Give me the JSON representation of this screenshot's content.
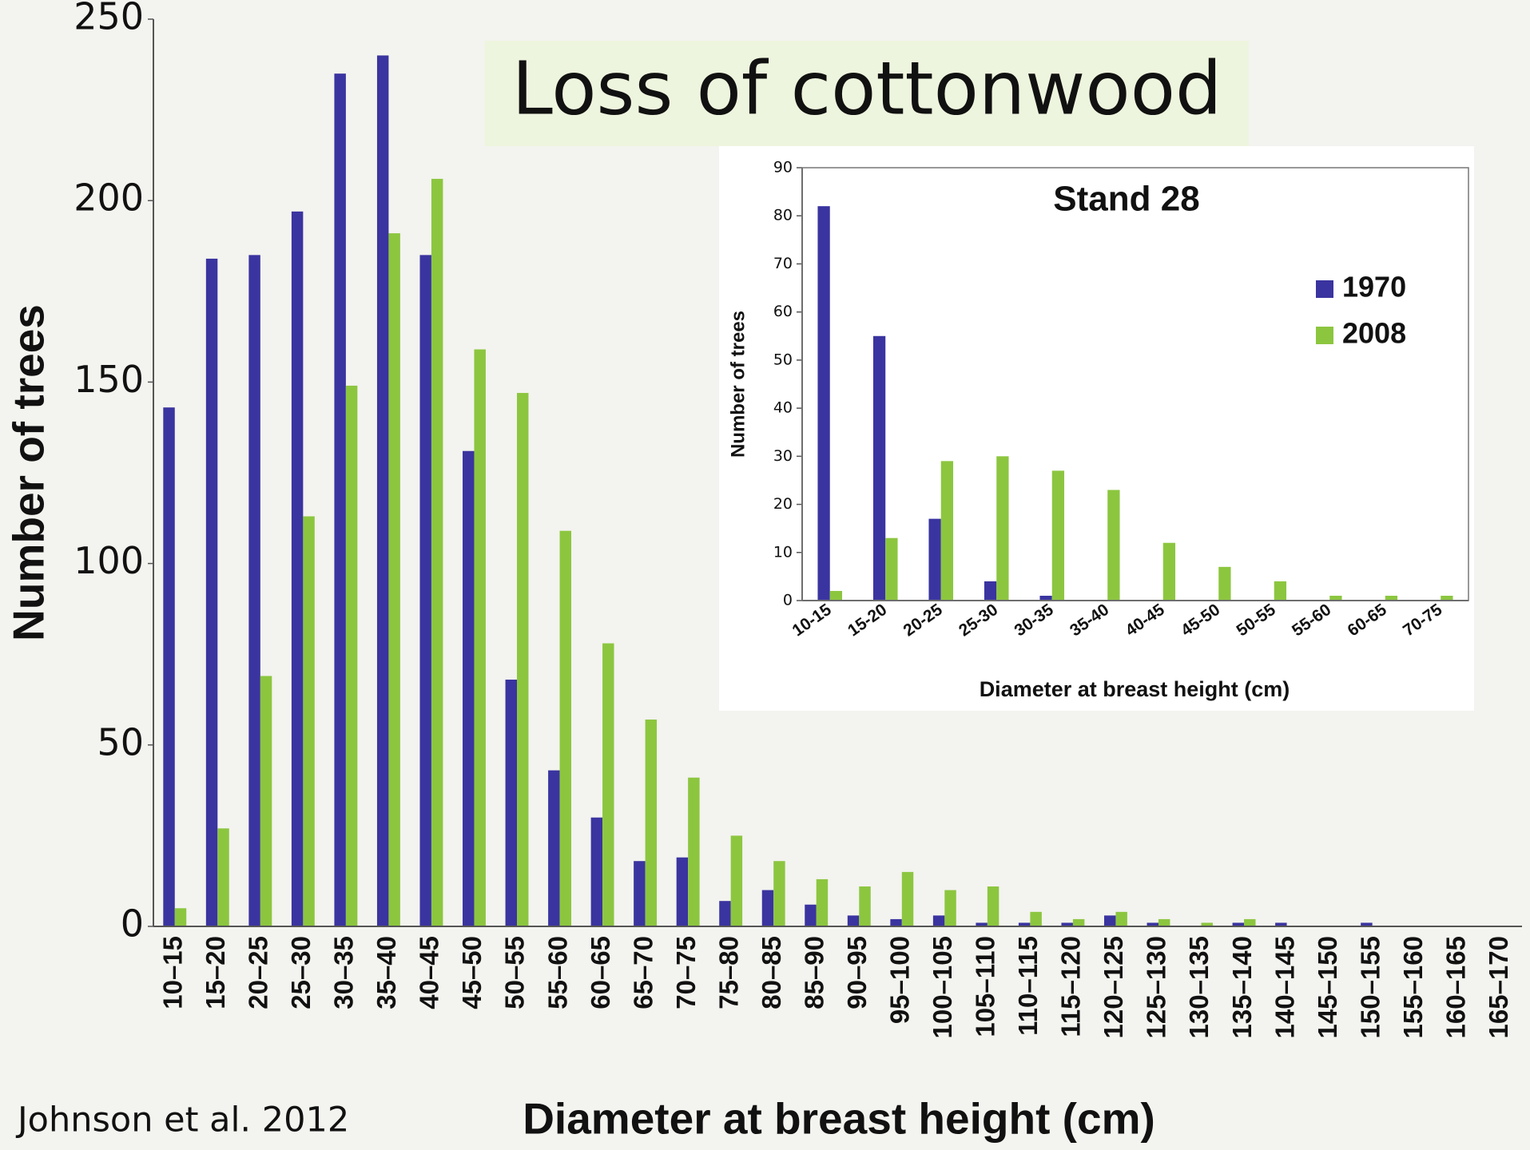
{
  "chart_data": [
    {
      "type": "bar",
      "title": "Loss of cottonwood",
      "credit": "Johnson et al. 2012",
      "x_label": "Diameter at breast height (cm)",
      "y_label": "Number of trees",
      "categories": [
        "10–15",
        "15–20",
        "20–25",
        "25–30",
        "30–35",
        "35–40",
        "40–45",
        "45–50",
        "50–55",
        "55–60",
        "60–65",
        "65–70",
        "70–75",
        "75–80",
        "80–85",
        "85–90",
        "90–95",
        "95–100",
        "100–105",
        "105–110",
        "110–115",
        "115–120",
        "120–125",
        "125–130",
        "130–135",
        "135–140",
        "140–145",
        "145–150",
        "150–155",
        "155–160",
        "160–165",
        "165–170"
      ],
      "series": [
        {
          "name": "1970",
          "color": "#3a34a0",
          "values": [
            143,
            184,
            185,
            197,
            235,
            240,
            185,
            131,
            68,
            43,
            30,
            18,
            19,
            7,
            10,
            6,
            3,
            2,
            3,
            1,
            1,
            1,
            3,
            1,
            0,
            1,
            1,
            0,
            1,
            0,
            0,
            0
          ]
        },
        {
          "name": "2008",
          "color": "#8cc63f",
          "values": [
            5,
            27,
            69,
            113,
            149,
            191,
            206,
            159,
            147,
            109,
            78,
            57,
            41,
            25,
            18,
            13,
            11,
            15,
            10,
            11,
            4,
            2,
            4,
            2,
            1,
            2,
            0,
            0,
            0,
            0,
            0,
            0
          ]
        }
      ],
      "ylim": [
        0,
        250
      ],
      "yticks": [
        0,
        50,
        100,
        150,
        200,
        250
      ]
    },
    {
      "type": "bar",
      "title": "Stand 28",
      "x_label": "Diameter at breast height (cm)",
      "y_label": "Number of trees",
      "categories": [
        "10-15",
        "15-20",
        "20-25",
        "25-30",
        "30-35",
        "35-40",
        "40-45",
        "45-50",
        "50-55",
        "55-60",
        "60-65",
        "70-75"
      ],
      "series": [
        {
          "name": "1970",
          "color": "#3a34a0",
          "values": [
            82,
            55,
            17,
            4,
            1,
            0,
            0,
            0,
            0,
            0,
            0,
            0
          ]
        },
        {
          "name": "2008",
          "color": "#8cc63f",
          "values": [
            2,
            13,
            29,
            30,
            27,
            23,
            12,
            7,
            4,
            1,
            1,
            1
          ]
        }
      ],
      "ylim": [
        0,
        90
      ],
      "yticks": [
        0,
        10,
        20,
        30,
        40,
        50,
        60,
        70,
        80,
        90
      ],
      "legend": "upper right"
    }
  ]
}
